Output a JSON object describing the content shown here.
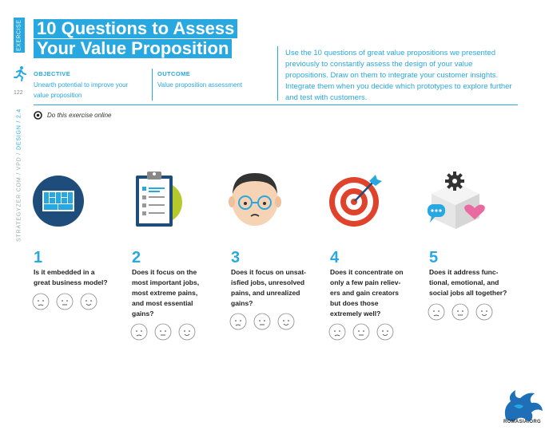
{
  "sidebar": {
    "tab": "EXERCISE",
    "page_number": "122",
    "site": "STRATEGYZER.COM / VPD /",
    "section": "DESIGN / 2.4"
  },
  "header": {
    "title_line1": "10 Questions to Assess",
    "title_line2": "Your Value Proposition",
    "objective_label": "OBJECTIVE",
    "objective_text_1": "Unearth potential to improve your",
    "objective_text_2": "value proposition",
    "outcome_label": "OUTCOME",
    "outcome_text": "Value proposition assessment",
    "intro": "Use the 10 questions of great value propositions we presented previously to constantly assess the design of your value propositions. Draw on them to integrate your customer insights. Integrate them when you decide which prototypes to explore further and test with customers."
  },
  "online_link": "Do this exercise online",
  "questions": [
    {
      "num": "1",
      "lines": [
        "Is it embedded in a",
        "great business model?"
      ]
    },
    {
      "num": "2",
      "lines": [
        "Does it focus on the",
        "most important jobs,",
        "most extreme pains,",
        "and most essential",
        "gains?"
      ]
    },
    {
      "num": "3",
      "lines": [
        "Does it focus on unsat-",
        "isfied jobs, unresolved",
        "pains, and unrealized",
        "gains?"
      ]
    },
    {
      "num": "4",
      "lines": [
        "Does it concentrate on",
        "only a few pain reliev-",
        "ers and gain creators",
        "but does those",
        "extremely well?"
      ]
    },
    {
      "num": "5",
      "lines": [
        "Does it address func-",
        "tional, emotional, and",
        "social jobs all together?"
      ]
    }
  ],
  "logo_text": "ROMASIA.ORG",
  "colors": {
    "accent": "#28a8e0",
    "navy": "#1e4d7b",
    "red": "#e0432b",
    "olive": "#b5c92a",
    "pink": "#e96aa0"
  }
}
